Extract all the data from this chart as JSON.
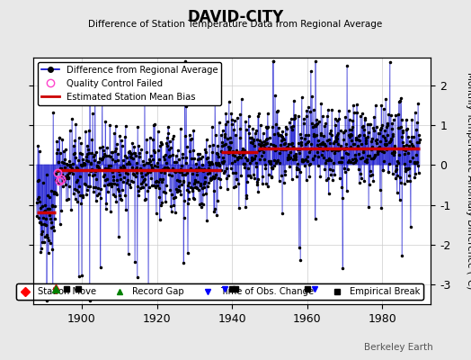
{
  "title": "DAVID-CITY",
  "subtitle": "Difference of Station Temperature Data from Regional Average",
  "ylabel": "Monthly Temperature Anomaly Difference (°C)",
  "xlabel_ticks": [
    1900,
    1920,
    1940,
    1960,
    1980
  ],
  "ylim": [
    -3.5,
    2.7
  ],
  "xlim": [
    1887,
    1993
  ],
  "background_color": "#e8e8e8",
  "plot_bg_color": "#ffffff",
  "line_color": "#0000cc",
  "marker_color": "#000000",
  "bias_color": "#cc0000",
  "qc_color": "#ff00ff",
  "seed": 42,
  "start_year": 1888,
  "end_year": 1990,
  "station_moves": [
    1893
  ],
  "record_gaps": [
    1893
  ],
  "tobs_changes": [
    1938,
    1962
  ],
  "empirical_breaks": [
    1896,
    1899,
    1940,
    1941,
    1960
  ],
  "bias_segments": [
    {
      "start": 1888,
      "end": 1893,
      "value": -1.2
    },
    {
      "start": 1893,
      "end": 1937,
      "value": -0.12
    },
    {
      "start": 1937,
      "end": 1947,
      "value": 0.32
    },
    {
      "start": 1947,
      "end": 1990,
      "value": 0.42
    }
  ],
  "qc_years": [
    1893.5,
    1894.0,
    1894.5
  ],
  "qc_vals": [
    -0.2,
    -0.4,
    -0.35
  ],
  "watermark": "Berkeley Earth",
  "watermark_color": "#555555",
  "noise_scale": 0.52,
  "spike_count": 35
}
